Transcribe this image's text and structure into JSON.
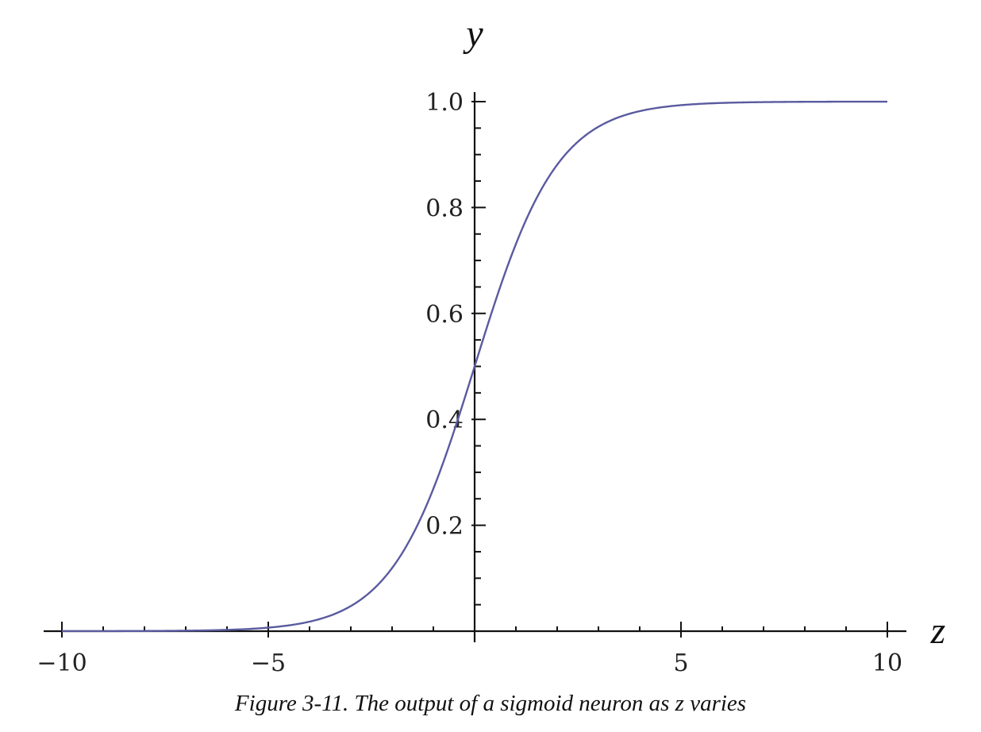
{
  "chart_data": {
    "type": "line",
    "xlabel": "z",
    "ylabel": "y",
    "xlim": [
      -10,
      10
    ],
    "ylim": [
      0,
      1
    ],
    "x_ticks_major": [
      -10,
      -5,
      5,
      10
    ],
    "x_tick_labels": [
      "−10",
      "−5",
      "5",
      "10"
    ],
    "x_ticks_minor_step": 1,
    "y_ticks_major": [
      0.2,
      0.4,
      0.6,
      0.8,
      1.0
    ],
    "y_tick_labels": [
      "0.2",
      "0.4",
      "0.6",
      "0.8",
      "1.0"
    ],
    "y_ticks_minor_step": 0.05,
    "grid": false,
    "legend": "none",
    "line_color": "#5a5aa0",
    "series": [
      {
        "function": "1/(1+exp(-z))",
        "x": [
          -10,
          -9,
          -8,
          -7,
          -6,
          -5,
          -4,
          -3,
          -2,
          -1.5,
          -1,
          -0.5,
          0,
          0.5,
          1,
          1.5,
          2,
          3,
          4,
          5,
          6,
          7,
          8,
          9,
          10
        ],
        "y": [
          4.54e-05,
          0.000123,
          0.000335,
          0.000911,
          0.00247,
          0.00669,
          0.018,
          0.0474,
          0.119,
          0.182,
          0.269,
          0.378,
          0.5,
          0.622,
          0.731,
          0.818,
          0.881,
          0.953,
          0.982,
          0.993,
          0.998,
          0.999,
          0.9997,
          0.9999,
          1.0
        ]
      }
    ]
  },
  "caption": "Figure 3-11. The output of a sigmoid neuron as z varies"
}
